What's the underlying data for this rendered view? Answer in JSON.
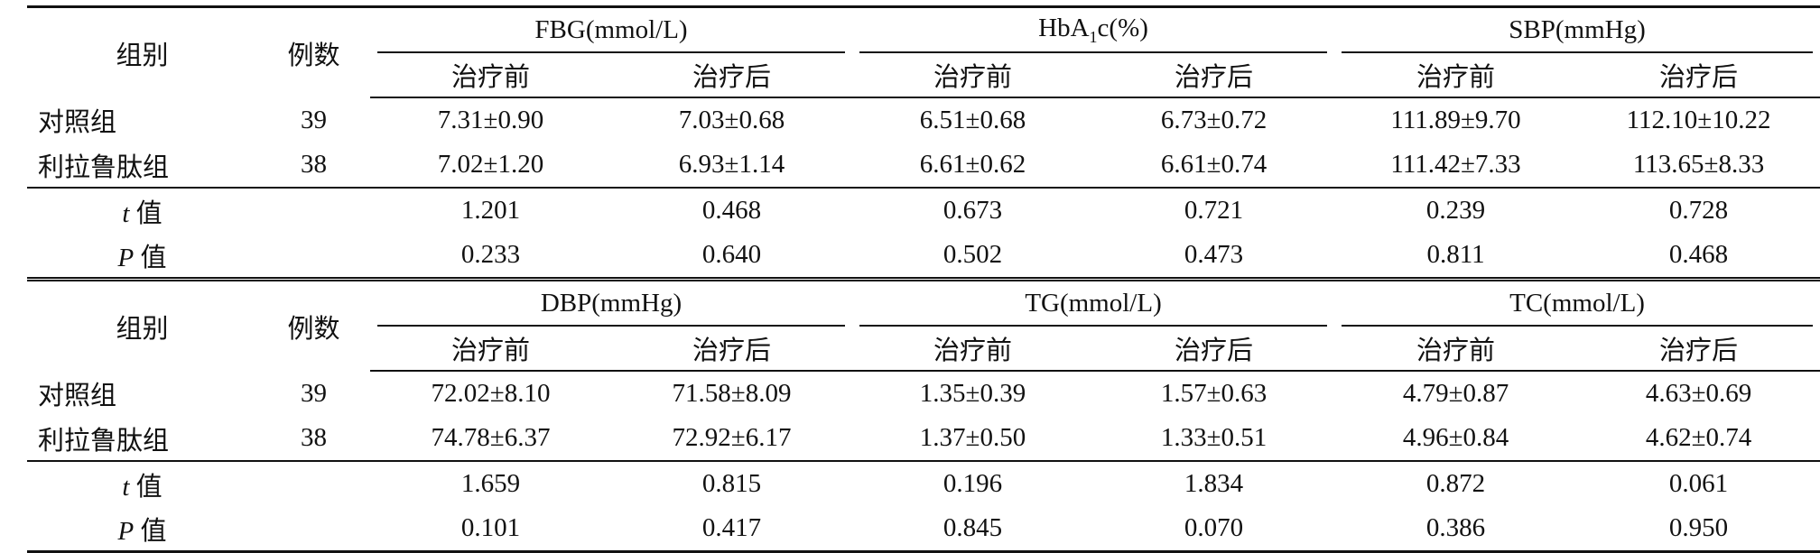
{
  "blocks": [
    {
      "header": {
        "group_label": "组别",
        "count_label": "例数",
        "groups": [
          {
            "name": "FBG(mmol/L)"
          },
          {
            "name": "HbA1c(%)",
            "base": "HbA",
            "sub": "1",
            "rest": "c(%)"
          },
          {
            "name": "SBP(mmHg)"
          }
        ],
        "before": "治疗前",
        "after": "治疗后"
      },
      "rows": [
        {
          "label": "对照组",
          "n": "39",
          "values": [
            "7.31±0.90",
            "7.03±0.68",
            "6.51±0.68",
            "6.73±0.72",
            "111.89±9.70",
            "112.10±10.22"
          ]
        },
        {
          "label": "利拉鲁肽组",
          "n": "38",
          "values": [
            "7.02±1.20",
            "6.93±1.14",
            "6.61±0.62",
            "6.61±0.74",
            "111.42±7.33",
            "113.65±8.33"
          ]
        }
      ],
      "stats": [
        {
          "sym": "t",
          "label": "值",
          "values": [
            "1.201",
            "0.468",
            "0.673",
            "0.721",
            "0.239",
            "0.728"
          ]
        },
        {
          "sym": "P",
          "label": "值",
          "values": [
            "0.233",
            "0.640",
            "0.502",
            "0.473",
            "0.811",
            "0.468"
          ]
        }
      ]
    },
    {
      "header": {
        "group_label": "组别",
        "count_label": "例数",
        "groups": [
          {
            "name": "DBP(mmHg)"
          },
          {
            "name": "TG(mmol/L)"
          },
          {
            "name": "TC(mmol/L)"
          }
        ],
        "before": "治疗前",
        "after": "治疗后"
      },
      "rows": [
        {
          "label": "对照组",
          "n": "39",
          "values": [
            "72.02±8.10",
            "71.58±8.09",
            "1.35±0.39",
            "1.57±0.63",
            "4.79±0.87",
            "4.63±0.69"
          ]
        },
        {
          "label": "利拉鲁肽组",
          "n": "38",
          "values": [
            "74.78±6.37",
            "72.92±6.17",
            "1.37±0.50",
            "1.33±0.51",
            "4.96±0.84",
            "4.62±0.74"
          ]
        }
      ],
      "stats": [
        {
          "sym": "t",
          "label": "值",
          "values": [
            "1.659",
            "0.815",
            "0.196",
            "1.834",
            "0.872",
            "0.061"
          ]
        },
        {
          "sym": "P",
          "label": "值",
          "values": [
            "0.101",
            "0.417",
            "0.845",
            "0.070",
            "0.386",
            "0.950"
          ]
        }
      ]
    }
  ]
}
